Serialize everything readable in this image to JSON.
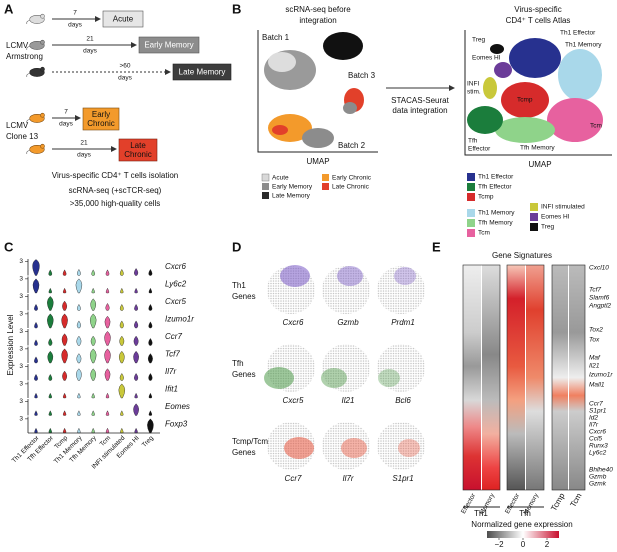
{
  "panel_a": {
    "label": "A",
    "armstrong": [
      "LCMV",
      "Armstrong"
    ],
    "clone13": [
      "LCMV",
      "Clone 13"
    ],
    "armstrong_rows": [
      {
        "days": "7",
        "unit": "days",
        "state": "Acute"
      },
      {
        "days": "21",
        "unit": "days",
        "state": "Early Memory"
      },
      {
        "days": ">60",
        "unit": "days",
        "state": "Late Memory"
      }
    ],
    "clone13_rows": [
      {
        "days": "7",
        "unit": "days",
        "state": [
          "Early",
          "Chronic"
        ]
      },
      {
        "days": "21",
        "unit": "days",
        "state": [
          "Late",
          "Chronic"
        ]
      }
    ],
    "caption": [
      "Virus-specific CD4⁺ T cells isolation",
      "scRNA-seq (+scTCR-seq)",
      ">35,000 high-quality cells"
    ]
  },
  "panel_b": {
    "label": "B",
    "before_title": [
      "scRNA-seq before",
      "integration"
    ],
    "batches": [
      "Batch 1",
      "Batch 3",
      "Batch 2"
    ],
    "axis": "UMAP",
    "legend": [
      {
        "name": "Acute",
        "color": "#d9d9d9"
      },
      {
        "name": "Early Memory",
        "color": "#8c8c8c"
      },
      {
        "name": "Late Memory",
        "color": "#2b2b2b"
      },
      {
        "name": "Early Chronic",
        "color": "#f39a2b"
      },
      {
        "name": "Late Chronic",
        "color": "#e2402a"
      }
    ],
    "arrow": [
      "STACAS-Seurat",
      "data integration"
    ],
    "atlas_title": [
      "Virus-specific",
      "CD4⁺ T cells Atlas"
    ],
    "clusters": [
      {
        "name": "Th1 Effector",
        "color": "#27318f"
      },
      {
        "name": "Tfh Effector",
        "color": "#1b7d3c"
      },
      {
        "name": "Tcmp",
        "color": "#d62b2b"
      },
      {
        "name": "Th1 Memory",
        "color": "#a9d8ea"
      },
      {
        "name": "Tfh Memory",
        "color": "#8fd38a"
      },
      {
        "name": "Tcm",
        "color": "#e7619f"
      },
      {
        "name": "INFI stimulated",
        "color": "#c9c83a"
      },
      {
        "name": "Eomes HI",
        "color": "#6b3c99"
      },
      {
        "name": "Treg",
        "color": "#111111"
      }
    ],
    "plot_labels": {
      "th1_effector": "Th1 Effector",
      "treg": "Treg",
      "th1_memory": "Th1 Memory",
      "eomes": "Eomes HI",
      "infi": [
        "INFI",
        "stim."
      ],
      "tcmp": "Tcmp",
      "tfh_effector": [
        "Tfh",
        "Effector"
      ],
      "tfh_memory": "Tfh Memory",
      "tcm": "Tcm"
    }
  },
  "panel_c": {
    "type": "violin",
    "label": "C",
    "ylabel": "Expression Level",
    "genes": [
      "Cxcr6",
      "Ly6c2",
      "Cxcr5",
      "Izumo1r",
      "Ccr7",
      "Tcf7",
      "Il7r",
      "Ifit1",
      "Eomes",
      "Foxp3"
    ],
    "ylim": [
      0,
      3.5
    ],
    "yticks": [
      3
    ],
    "values": [
      [
        2.5,
        0.2,
        0.2,
        0.3,
        0.2,
        0.2,
        0.3,
        0.5,
        0.3
      ],
      [
        2,
        0,
        0,
        2,
        0,
        0,
        0,
        0,
        0
      ],
      [
        0.3,
        2,
        1,
        0.3,
        1.5,
        0.5,
        0.3,
        0.3,
        0.3
      ],
      [
        0.2,
        2,
        2,
        0.5,
        2,
        1.5,
        0.5,
        0.5,
        0.3
      ],
      [
        0.2,
        0.5,
        1.5,
        1,
        1,
        2,
        1,
        1,
        0.5
      ],
      [
        0.3,
        1.5,
        2,
        1,
        2,
        2,
        1.5,
        1.5,
        1
      ],
      [
        0.3,
        0.3,
        1,
        1.5,
        1.5,
        1.5,
        0.5,
        0.5,
        0.5
      ],
      [
        0,
        0,
        0,
        0,
        0,
        0,
        2,
        0,
        0
      ],
      [
        0,
        0,
        0,
        0,
        0,
        0,
        0,
        1.5,
        0
      ],
      [
        0,
        0,
        0,
        0,
        0,
        0,
        0,
        0,
        2
      ]
    ]
  },
  "panel_d": {
    "label": "D",
    "rows": [
      {
        "title": [
          "Th1",
          "Genes"
        ],
        "genes": [
          "Cxcr6",
          "Gzmb",
          "Prdm1"
        ],
        "color": "#7a5ac6"
      },
      {
        "title": [
          "Tfh",
          "Genes"
        ],
        "genes": [
          "Cxcr5",
          "Il21",
          "Bcl6"
        ],
        "color": "#4f9a4a"
      },
      {
        "title": [
          "Tcmp/Tcm",
          "Genes"
        ],
        "genes": [
          "Ccr7",
          "Il7r",
          "S1pr1"
        ],
        "color": "#e8563e"
      }
    ]
  },
  "panel_e": {
    "label": "E",
    "title": "Gene Signatures",
    "genes": [
      "Cxcl10",
      "Tcf7",
      "Slamf6",
      "Angptl2",
      "Tox2",
      "Tox",
      "Maf",
      "Il21",
      "Izumo1r",
      "Mall1",
      "Ccr7",
      "S1pr1",
      "Id2",
      "Il7r",
      "Cxcr6",
      "Ccl5",
      "Runx3",
      "Ly6c2",
      "Bhlhe40",
      "Gzmb",
      "Gzmk"
    ],
    "columns": [
      "Effector",
      "Memory",
      "Effector",
      "Memory"
    ],
    "groups": [
      "Th1",
      "Tfh"
    ],
    "subsets": [
      "Tcmp",
      "Tcm"
    ],
    "colorbar": {
      "title": "Normalized gene expression",
      "lim": [
        -3,
        3
      ],
      "ticks": [
        {
          "value": -2,
          "label": "−2"
        },
        0,
        2
      ]
    }
  }
}
